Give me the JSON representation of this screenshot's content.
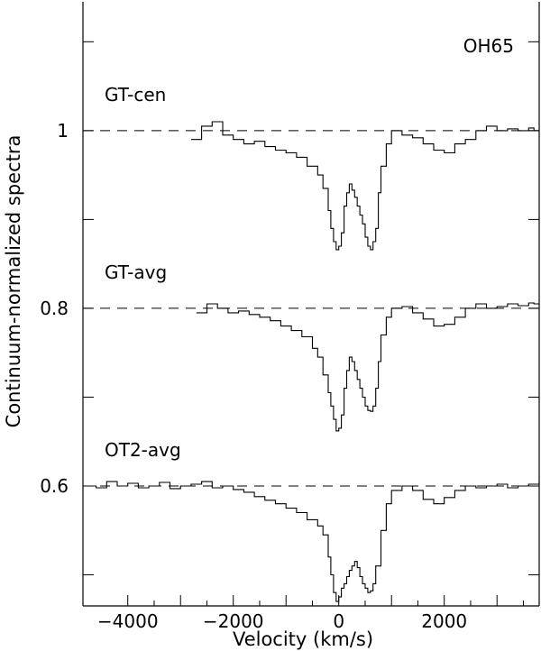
{
  "chart_data": {
    "type": "line",
    "annotation": "OH65",
    "xlabel": "Velocity (km/s)",
    "ylabel": "Continuum-normalized spectra",
    "xlim": [
      -4850,
      3800
    ],
    "ylim": [
      0.465,
      1.145
    ],
    "x_ticks": [
      -4000,
      -2000,
      0,
      2000
    ],
    "y_tick_labels": [
      0.6,
      0.8,
      1
    ],
    "y_minor_ticks": [
      0.5,
      0.6,
      0.7,
      0.8,
      0.9,
      1.0,
      1.1
    ],
    "reference_levels": [
      1.0,
      0.8,
      0.6
    ],
    "series": [
      {
        "name": "GT-cen",
        "reference": 1.0,
        "x": [
          -2800,
          -2600,
          -2400,
          -2200,
          -2000,
          -1800,
          -1600,
          -1400,
          -1200,
          -1000,
          -800,
          -600,
          -400,
          -300,
          -200,
          -150,
          -100,
          -50,
          0,
          50,
          100,
          150,
          200,
          250,
          300,
          350,
          400,
          450,
          500,
          550,
          600,
          650,
          700,
          750,
          800,
          900,
          1000,
          1200,
          1400,
          1600,
          1800,
          2000,
          2200,
          2400,
          2600,
          2800,
          3000,
          3200,
          3400,
          3600,
          3700
        ],
        "values": [
          0.99,
          1.005,
          1.01,
          0.995,
          0.99,
          0.985,
          0.988,
          0.982,
          0.978,
          0.975,
          0.97,
          0.96,
          0.95,
          0.935,
          0.91,
          0.89,
          0.875,
          0.866,
          0.87,
          0.885,
          0.915,
          0.93,
          0.94,
          0.933,
          0.925,
          0.915,
          0.905,
          0.895,
          0.88,
          0.87,
          0.866,
          0.875,
          0.89,
          0.93,
          0.96,
          0.985,
          1.0,
          0.995,
          0.992,
          0.985,
          0.978,
          0.975,
          0.985,
          0.99,
          1.0,
          1.005,
          1.0,
          1.002,
          1.0,
          1.003,
          1.0
        ]
      },
      {
        "name": "GT-avg",
        "reference": 0.8,
        "x": [
          -2700,
          -2500,
          -2300,
          -2100,
          -1900,
          -1700,
          -1500,
          -1300,
          -1100,
          -900,
          -700,
          -500,
          -400,
          -300,
          -200,
          -150,
          -100,
          -50,
          0,
          50,
          100,
          150,
          200,
          250,
          300,
          350,
          400,
          450,
          500,
          550,
          600,
          650,
          700,
          750,
          800,
          900,
          1000,
          1200,
          1400,
          1600,
          1800,
          2000,
          2200,
          2400,
          2600,
          2800,
          3000,
          3200,
          3400,
          3600,
          3700
        ],
        "values": [
          0.795,
          0.805,
          0.8,
          0.795,
          0.797,
          0.793,
          0.79,
          0.786,
          0.78,
          0.775,
          0.768,
          0.755,
          0.745,
          0.725,
          0.705,
          0.69,
          0.675,
          0.662,
          0.665,
          0.68,
          0.71,
          0.73,
          0.745,
          0.74,
          0.73,
          0.72,
          0.71,
          0.7,
          0.69,
          0.685,
          0.684,
          0.69,
          0.71,
          0.74,
          0.77,
          0.79,
          0.8,
          0.802,
          0.795,
          0.788,
          0.78,
          0.782,
          0.79,
          0.8,
          0.805,
          0.8,
          0.802,
          0.805,
          0.803,
          0.806,
          0.805
        ]
      },
      {
        "name": "OT2-avg",
        "reference": 0.6,
        "x": [
          -4850,
          -4600,
          -4400,
          -4200,
          -4000,
          -3800,
          -3600,
          -3400,
          -3200,
          -3000,
          -2800,
          -2600,
          -2400,
          -2200,
          -2000,
          -1800,
          -1600,
          -1400,
          -1200,
          -1000,
          -800,
          -600,
          -400,
          -300,
          -200,
          -150,
          -100,
          -50,
          0,
          50,
          100,
          150,
          200,
          250,
          300,
          350,
          400,
          450,
          500,
          550,
          600,
          650,
          700,
          800,
          900,
          1000,
          1200,
          1400,
          1600,
          1800,
          2000,
          2200,
          2400,
          2600,
          2800,
          3000,
          3200,
          3400,
          3600,
          3800
        ],
        "values": [
          0.6,
          0.598,
          0.605,
          0.6,
          0.603,
          0.598,
          0.6,
          0.604,
          0.597,
          0.6,
          0.602,
          0.605,
          0.598,
          0.6,
          0.596,
          0.593,
          0.588,
          0.584,
          0.58,
          0.575,
          0.57,
          0.562,
          0.555,
          0.545,
          0.52,
          0.5,
          0.48,
          0.47,
          0.475,
          0.485,
          0.49,
          0.498,
          0.505,
          0.51,
          0.515,
          0.508,
          0.498,
          0.49,
          0.485,
          0.48,
          0.482,
          0.49,
          0.51,
          0.55,
          0.58,
          0.595,
          0.6,
          0.595,
          0.585,
          0.58,
          0.587,
          0.595,
          0.6,
          0.598,
          0.6,
          0.602,
          0.598,
          0.6,
          0.602,
          0.605
        ]
      }
    ]
  }
}
